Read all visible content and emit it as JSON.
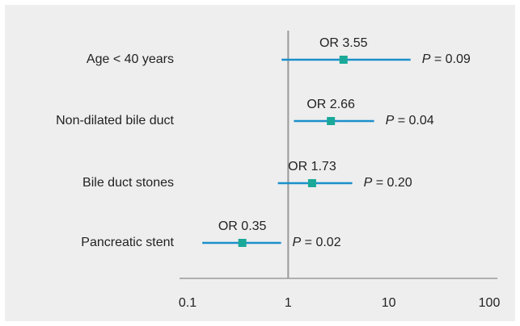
{
  "chart_data": {
    "type": "forest",
    "categories": [
      "Age < 40 years",
      "Non-dilated bile duct",
      "Bile duct stones",
      "Pancreatic stent"
    ],
    "values": [
      3.55,
      2.66,
      1.73,
      0.35
    ],
    "value_labels": [
      "OR 3.55",
      "OR 2.66",
      "OR 1.73",
      "OR 0.35"
    ],
    "ci_lower": [
      0.86,
      1.14,
      0.79,
      0.14
    ],
    "ci_upper": [
      16.5,
      7.16,
      4.34,
      0.85
    ],
    "p_labels": [
      "P = 0.09",
      "P = 0.04",
      "P = 0.20",
      "P = 0.02"
    ],
    "xlim": [
      0.1,
      100
    ],
    "xticks": [
      0.1,
      1,
      10,
      100
    ],
    "xscale": "log",
    "reference": 1,
    "line_color": "#1a8fcb",
    "marker_color": "#1aa898"
  }
}
